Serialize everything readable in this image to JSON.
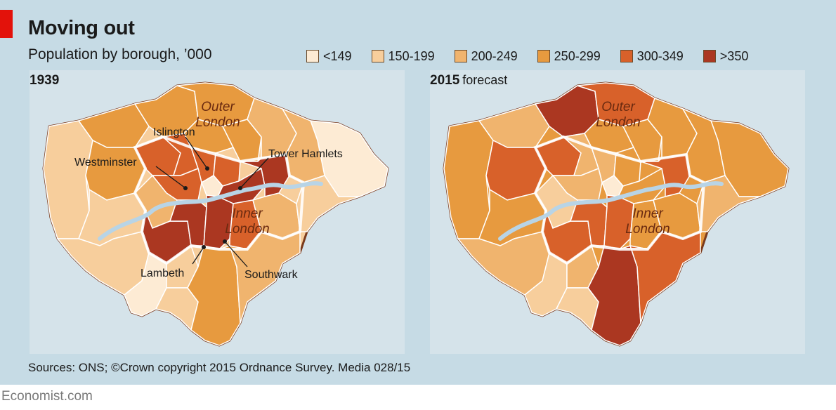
{
  "header": {
    "title": "Moving out",
    "subtitle": "Population by borough, ’000"
  },
  "legend": {
    "items": [
      {
        "label": "<149",
        "color": "#fdebd4"
      },
      {
        "label": "150-199",
        "color": "#f7ce9c"
      },
      {
        "label": "200-249",
        "color": "#f0b46e"
      },
      {
        "label": "250-299",
        "color": "#e79a3f"
      },
      {
        "label": "300-349",
        "color": "#d8612a"
      },
      {
        "label": ">350",
        "color": "#ab3721"
      }
    ]
  },
  "maps": {
    "left": {
      "year": "1939",
      "year_suffix": "",
      "area_labels": {
        "outer_line1": "Outer",
        "outer_line2": "London",
        "inner_line1": "Inner",
        "inner_line2": "London"
      },
      "borough_labels": {
        "islington": "Islington",
        "westminster": "Westminster",
        "tower_hamlets": "Tower Hamlets",
        "lambeth": "Lambeth",
        "southwark": "Southwark"
      }
    },
    "right": {
      "year": "2015",
      "year_suffix": "forecast",
      "area_labels": {
        "outer_line1": "Outer",
        "outer_line2": "London",
        "inner_line1": "Inner",
        "inner_line2": "London"
      }
    }
  },
  "colors": {
    "background": "#c6dbe5",
    "map_panel": "#d5e3ea",
    "outline": "#7a3a1c",
    "river": "#b8d4e6",
    "accent": "#e3120b"
  },
  "footer": {
    "source": "Sources: ONS; ©Crown copyright 2015 Ordnance Survey. Media 028/15",
    "brand": "Economist.com"
  }
}
